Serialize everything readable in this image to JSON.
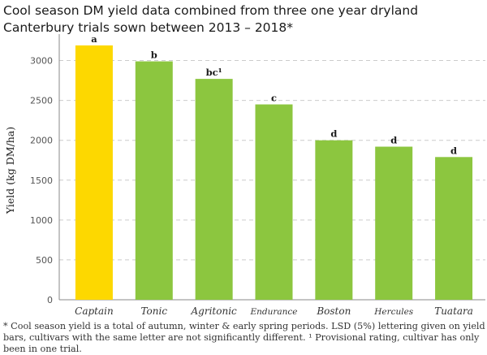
{
  "chart_data": {
    "type": "bar",
    "title": "Cool season DM yield data combined from three one year dryland Canterbury trials sown between 2013 – 2018*",
    "xlabel": "",
    "ylabel": "Yield (kg DM/ha)",
    "ylim": [
      0,
      3250
    ],
    "yticks": [
      "0",
      "500",
      "1000",
      "1500",
      "2000",
      "2500",
      "3000"
    ],
    "categories": [
      "Captain",
      "Tonic",
      "Agritonic",
      "Endurance",
      "Boston",
      "Hercules",
      "Tuatara"
    ],
    "values": [
      3190,
      2990,
      2770,
      2450,
      2000,
      1920,
      1790
    ],
    "significance_labels": [
      "a",
      "b",
      "bc¹",
      "c",
      "d",
      "d",
      "d"
    ],
    "highlight_category": "Captain",
    "colors": {
      "highlight": "#fdd800",
      "bar": "#8cc63f",
      "grid": "#cccccc",
      "axis": "#888888"
    },
    "grid": true,
    "legend": "none"
  },
  "footnote": "* Cool season yield is a total of autumn, winter & early spring periods. LSD (5%) lettering given on yield bars, cultivars with the same letter are not significantly different. ¹ Provisional rating, cultivar has only been in one trial."
}
